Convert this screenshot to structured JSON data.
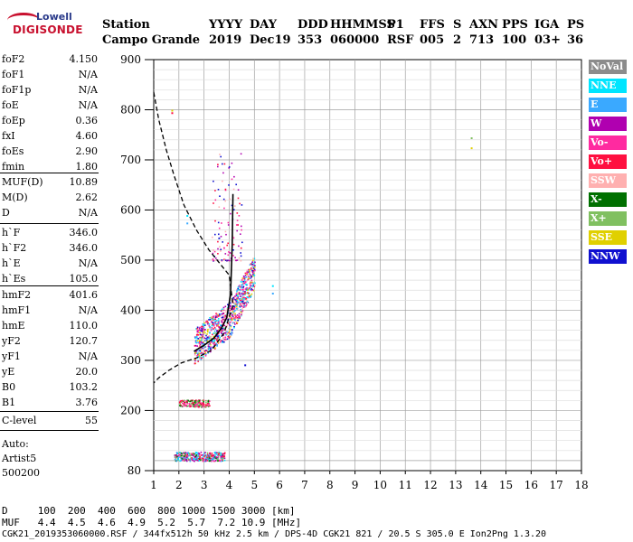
{
  "logo": {
    "line1": "Lowell",
    "line2": "DIGISONDE"
  },
  "header": {
    "columns": [
      "Station",
      "YYYY",
      "DAY",
      "DDD",
      "HHMMSS",
      "P1",
      "FFS",
      "S",
      "AXN",
      "PPS",
      "IGA",
      "PS"
    ],
    "values": [
      "Campo Grande",
      "2019",
      "Dec19",
      "353",
      "060000",
      "RSF",
      "005",
      "2",
      "713",
      "100",
      "03+",
      "36"
    ]
  },
  "params_group1": [
    {
      "name": "foF2",
      "value": "4.150"
    },
    {
      "name": "foF1",
      "value": "N/A"
    },
    {
      "name": "foF1p",
      "value": "N/A"
    },
    {
      "name": "foE",
      "value": "N/A"
    },
    {
      "name": "foEp",
      "value": "0.36"
    },
    {
      "name": "fxI",
      "value": "4.60"
    },
    {
      "name": "foEs",
      "value": "2.90"
    },
    {
      "name": "fmin",
      "value": "1.80"
    }
  ],
  "params_group2": [
    {
      "name": "MUF(D)",
      "value": "10.89"
    },
    {
      "name": "M(D)",
      "value": "2.62"
    },
    {
      "name": "D",
      "value": "N/A"
    }
  ],
  "params_group3": [
    {
      "name": "h`F",
      "value": "346.0"
    },
    {
      "name": "h`F2",
      "value": "346.0"
    },
    {
      "name": "h`E",
      "value": "N/A"
    },
    {
      "name": "h`Es",
      "value": "105.0"
    }
  ],
  "params_group4": [
    {
      "name": "hmF2",
      "value": "401.6"
    },
    {
      "name": "hmF1",
      "value": "N/A"
    },
    {
      "name": "hmE",
      "value": "110.0"
    },
    {
      "name": "yF2",
      "value": "120.7"
    },
    {
      "name": "yF1",
      "value": "N/A"
    },
    {
      "name": "yE",
      "value": "20.0"
    },
    {
      "name": "B0",
      "value": "103.2"
    },
    {
      "name": "B1",
      "value": "3.76"
    }
  ],
  "params_group5": [
    {
      "name": "C-level",
      "value": "55"
    }
  ],
  "auto_block": {
    "line1": "Auto:",
    "line2": "Artist5",
    "line3": "500200"
  },
  "legend": [
    {
      "label": "NoVal",
      "color": "#8c8c8c"
    },
    {
      "label": "NNE",
      "color": "#00e5ff"
    },
    {
      "label": "E",
      "color": "#3aa9ff"
    },
    {
      "label": "W",
      "color": "#b000b0"
    },
    {
      "label": "Vo-",
      "color": "#ff2aa0"
    },
    {
      "label": "Vo+",
      "color": "#ff1040"
    },
    {
      "label": "SSW",
      "color": "#ffb0b0"
    },
    {
      "label": "X-",
      "color": "#007000"
    },
    {
      "label": "X+",
      "color": "#80c060"
    },
    {
      "label": "SSE",
      "color": "#e0d000"
    },
    {
      "label": "NNW",
      "color": "#1010d0"
    }
  ],
  "bottom": {
    "line_d": "D     100  200  400  600  800 1000 1500 3000 [km]",
    "line_muf": "MUF   4.4  4.5  4.6  4.9  5.2  5.7  7.2 10.9 [MHz]",
    "footer": "CGK21_2019353060000.RSF / 344fx512h 50 kHz 2.5 km / DPS-4D CGK21 821 / 20.5 S 305.0 E Ion2Png 1.3.20"
  },
  "chart_data": {
    "type": "scatter",
    "xlim": [
      1,
      18
    ],
    "ylim": [
      80,
      900
    ],
    "x_ticks": [
      1,
      2,
      3,
      4,
      5,
      6,
      7,
      8,
      9,
      10,
      11,
      12,
      13,
      14,
      15,
      16,
      17,
      18
    ],
    "y_ticks": [
      80,
      200,
      300,
      400,
      500,
      600,
      700,
      800,
      900
    ],
    "grid": true,
    "xlabel": "",
    "ylabel": "",
    "profile_curve": {
      "freq": [
        2.6,
        3.0,
        3.4,
        3.7,
        3.9,
        4.05,
        4.12,
        4.15
      ],
      "height": [
        318,
        330,
        345,
        365,
        385,
        430,
        530,
        632
      ]
    },
    "dashed_curve": {
      "freq": [
        1.0,
        1.2,
        1.5,
        1.8,
        2.2,
        2.7,
        3.2,
        3.6,
        4.0,
        4.15,
        3.8,
        3.3,
        2.7,
        2.1,
        1.6,
        1.2,
        1.0
      ],
      "height": [
        835,
        780,
        720,
        670,
        610,
        560,
        520,
        495,
        470,
        410,
        355,
        320,
        305,
        295,
        280,
        265,
        255
      ]
    },
    "clusters": [
      {
        "name": "F2-trace",
        "fmin": 2.6,
        "fmax": 5.0,
        "hmin": 305,
        "hmax": 510,
        "count": 900,
        "colors": [
          "#ff2aa0",
          "#ff1040",
          "#b000b0",
          "#e0d000",
          "#ffb0b0",
          "#1010d0",
          "#00e5ff",
          "#3aa9ff"
        ]
      },
      {
        "name": "Es-trace",
        "fmin": 2.0,
        "fmax": 3.2,
        "hmin": 208,
        "hmax": 222,
        "count": 160,
        "colors": [
          "#ff1040",
          "#80c060",
          "#007000",
          "#ff2aa0"
        ]
      },
      {
        "name": "E-layer",
        "fmin": 1.8,
        "fmax": 3.8,
        "hmin": 100,
        "hmax": 118,
        "count": 350,
        "colors": [
          "#00e5ff",
          "#3aa9ff",
          "#ff2aa0",
          "#007000",
          "#80c060",
          "#ff1040",
          "#b000b0"
        ]
      },
      {
        "name": "F2-spread",
        "fmin": 3.3,
        "fmax": 4.5,
        "hmin": 500,
        "hmax": 720,
        "count": 120,
        "colors": [
          "#ff2aa0",
          "#b000b0",
          "#1010d0",
          "#ff1040",
          "#ffb0b0"
        ]
      }
    ],
    "isolated_points": [
      {
        "f": 1.7,
        "h": 800,
        "color": "#e0d000"
      },
      {
        "f": 1.7,
        "h": 795,
        "color": "#ff1040"
      },
      {
        "f": 2.3,
        "h": 590,
        "color": "#00e5ff"
      },
      {
        "f": 2.3,
        "h": 575,
        "color": "#3aa9ff"
      },
      {
        "f": 5.7,
        "h": 450,
        "color": "#00e5ff"
      },
      {
        "f": 5.7,
        "h": 435,
        "color": "#3aa9ff"
      },
      {
        "f": 4.6,
        "h": 292,
        "color": "#1010d0"
      },
      {
        "f": 13.6,
        "h": 725,
        "color": "#e0d000"
      },
      {
        "f": 13.6,
        "h": 745,
        "color": "#80c060"
      }
    ]
  }
}
